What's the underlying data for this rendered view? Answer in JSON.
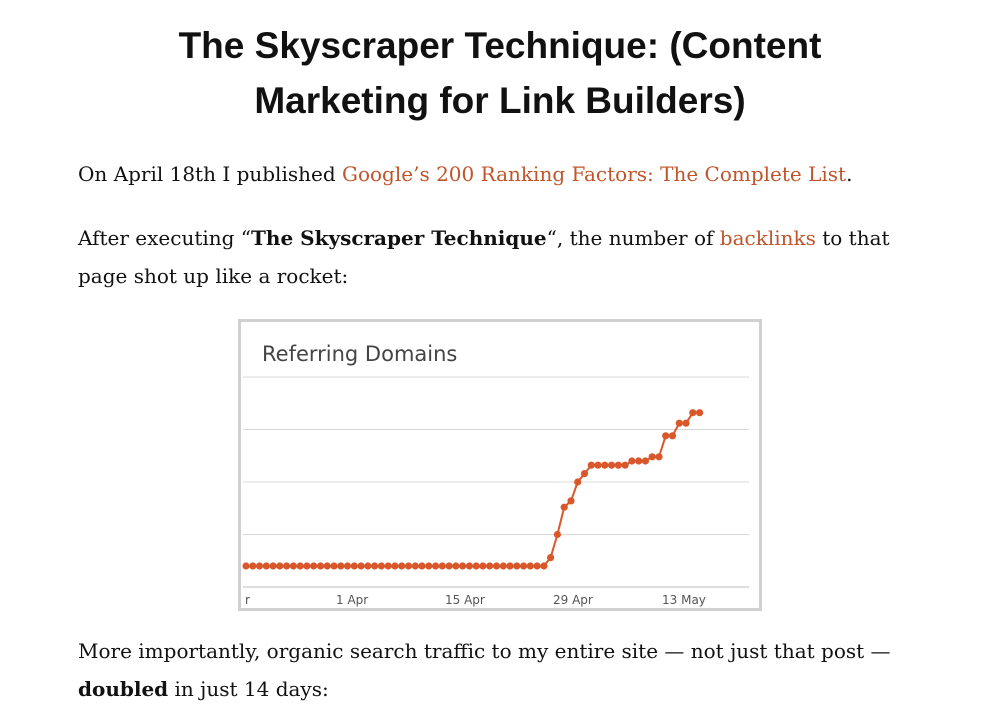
{
  "article": {
    "title": "The Skyscraper Technique: (Content Marketing for Link Builders)",
    "p1": {
      "prefix": "On April 18th I published ",
      "link": "Google’s 200 Ranking Factors: The Complete List",
      "suffix": "."
    },
    "p2": {
      "prefix": "After executing “",
      "bold": "The Skyscraper Technique",
      "middle": "“, the number of ",
      "link": "backlinks",
      "suffix": " to that page shot up like a rocket:"
    },
    "p3": {
      "prefix": "More importantly, organic search traffic to my entire site — not just that post — ",
      "bold": "doubled",
      "suffix": " in just 14 days:"
    },
    "link_color": "#c0552b"
  },
  "chart_data": {
    "type": "line",
    "title": "Referring Domains",
    "xlabel": "",
    "ylabel": "",
    "x_tick_labels": [
      "r",
      "1 Apr",
      "15 Apr",
      "29 Apr",
      "13 May"
    ],
    "grid": true,
    "legend": "none",
    "line_color": "#d9582b",
    "series": [
      {
        "values": [
          10,
          10,
          10,
          10,
          10,
          10,
          10,
          10,
          10,
          10,
          10,
          10,
          10,
          10,
          10,
          10,
          10,
          10,
          10,
          10,
          10,
          10,
          10,
          10,
          10,
          10,
          10,
          10,
          10,
          10,
          10,
          10,
          10,
          10,
          10,
          10,
          10,
          10,
          10,
          10,
          10,
          10,
          10,
          10,
          10,
          14,
          25,
          38,
          41,
          50,
          54,
          58,
          58,
          58,
          58,
          58,
          58,
          60,
          60,
          60,
          62,
          62,
          72,
          72,
          78,
          78,
          83,
          83
        ]
      }
    ],
    "ylim": [
      0,
      100
    ]
  }
}
